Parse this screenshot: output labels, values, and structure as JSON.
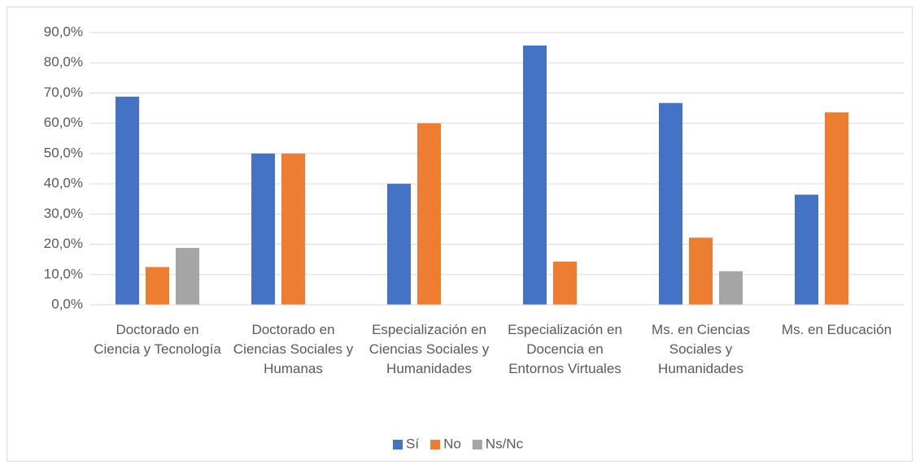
{
  "chart_data": {
    "type": "bar",
    "categories": [
      "Doctorado en Ciencia y Tecnología",
      "Doctorado en Ciencias Sociales y Humanas",
      "Especialización en Ciencias Sociales y Humanidades",
      "Especialización en Docencia en Entornos Virtuales",
      "Ms. en Ciencias Sociales y Humanidades",
      "Ms. en Educación"
    ],
    "series": [
      {
        "name": "Sí",
        "color": "#4472c4",
        "values": [
          68.8,
          50,
          40,
          85.7,
          66.7,
          36.4
        ]
      },
      {
        "name": "No",
        "color": "#ed7d31",
        "values": [
          12.5,
          50,
          60,
          14.3,
          22.2,
          63.6
        ]
      },
      {
        "name": "Ns/Nc",
        "color": "#a5a5a5",
        "values": [
          18.8,
          0,
          0,
          0,
          11.1,
          0
        ]
      }
    ],
    "ylim": [
      0,
      90
    ],
    "yticks": [
      {
        "value": 0,
        "label": "0,0%"
      },
      {
        "value": 10,
        "label": "10,0%"
      },
      {
        "value": 20,
        "label": "20,0%"
      },
      {
        "value": 30,
        "label": "30,0%"
      },
      {
        "value": 40,
        "label": "40,0%"
      },
      {
        "value": 50,
        "label": "50,0%"
      },
      {
        "value": 60,
        "label": "60,0%"
      },
      {
        "value": 70,
        "label": "70,0%"
      },
      {
        "value": 80,
        "label": "80,0%"
      },
      {
        "value": 90,
        "label": "90,0%"
      }
    ],
    "grid": true,
    "legend": "bottom"
  }
}
